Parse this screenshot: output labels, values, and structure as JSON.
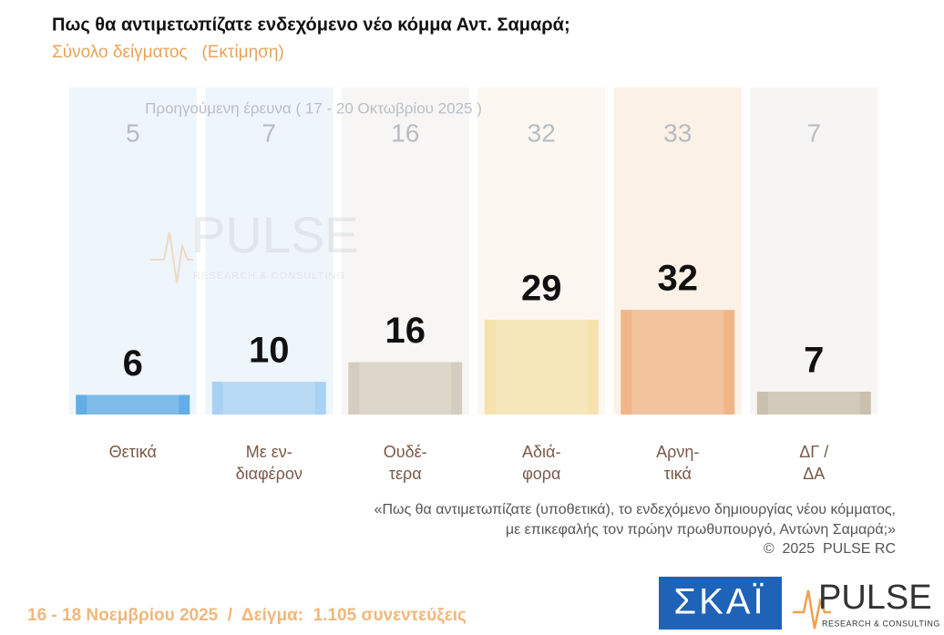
{
  "chart_data": {
    "type": "bar",
    "title": "Πως θα αντιμετωπίζατε ενδεχόμενο νέο κόμμα Αντ. Σαμαρά;",
    "subtitle": "Σύνολο δείγματος   (Εκτίμηση)",
    "previous_label": "Προηγούμενη έρευνα ( 17 - 20 Οκτωβρίου 2025 )",
    "categories": [
      [
        "Θετικά"
      ],
      [
        "Με εν-",
        "διαφέρον"
      ],
      [
        "Ουδέ-",
        "τερα"
      ],
      [
        "Αδιά-",
        "φορα"
      ],
      [
        "Αρνη-",
        "τικά"
      ],
      [
        "ΔΓ /",
        "ΔΑ"
      ]
    ],
    "values": [
      6,
      10,
      16,
      29,
      32,
      7
    ],
    "previous_values": [
      5,
      7,
      16,
      32,
      33,
      7
    ],
    "colors": [
      "#63aee6",
      "#a9d1f2",
      "#d5cdc0",
      "#f5e2ad",
      "#f0b688",
      "#cbbfae"
    ],
    "panel_colors": [
      "#eef5fb",
      "#eef5fb",
      "#f7f6f4",
      "#fcf8f1",
      "#fcf1e6",
      "#f7f5f3"
    ],
    "ylim": [
      0,
      100
    ],
    "footnote": [
      "«Πως θα αντιμετωπίζατε (υποθετικά), το ενδεχόμενο δημιουργίας νέου κόμματος,",
      "με επικεφαλής τον πρώην πρωθυπουργό, Αντώνη Σαμαρά;»"
    ],
    "copyright": "©  2025  PULSE RC",
    "fieldwork": "16 - 18 Νοεμβρίου 2025  /  Δείγμα:  1.105 συνεντεύξεις",
    "logo_skai": "ΣΚΑΪ",
    "logo_pulse": "PULSE",
    "logo_pulse_sub": "RESEARCH & CONSULTING"
  }
}
